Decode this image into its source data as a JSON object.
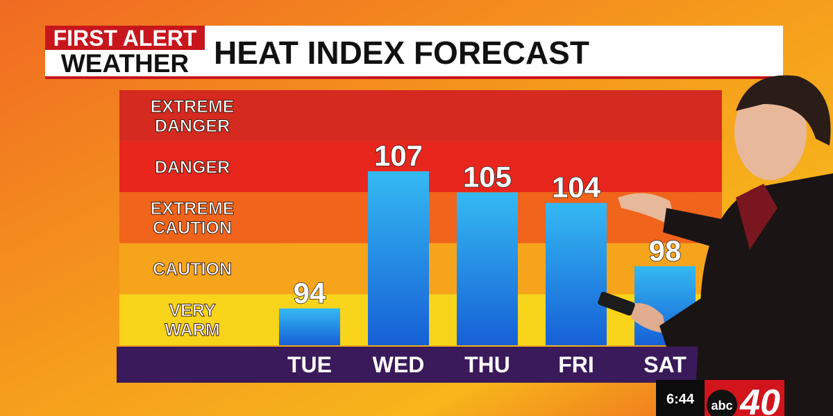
{
  "chart_data": {
    "type": "bar",
    "brand": [
      "FIRST ALERT",
      "WEATHER"
    ],
    "title": "HEAT INDEX FORECAST",
    "zones": [
      [
        "EXTREME",
        "DANGER"
      ],
      [
        "DANGER"
      ],
      [
        "EXTREME",
        "CAUTION"
      ],
      [
        "CAUTION"
      ],
      [
        "VERY",
        "WARM"
      ]
    ],
    "zone_colors": [
      "#d52a20",
      "#e8261d",
      "#f0641b",
      "#f6a41b",
      "#f8d41a"
    ],
    "categories": [
      "TUE",
      "WED",
      "THU",
      "FRI",
      "SAT"
    ],
    "values": [
      94,
      107,
      105,
      104,
      98
    ],
    "color": "#1a7fe6",
    "ylim": [
      90.5,
      114.7
    ],
    "station": {
      "time": "6:44",
      "network": "abc",
      "channel": "40"
    }
  }
}
